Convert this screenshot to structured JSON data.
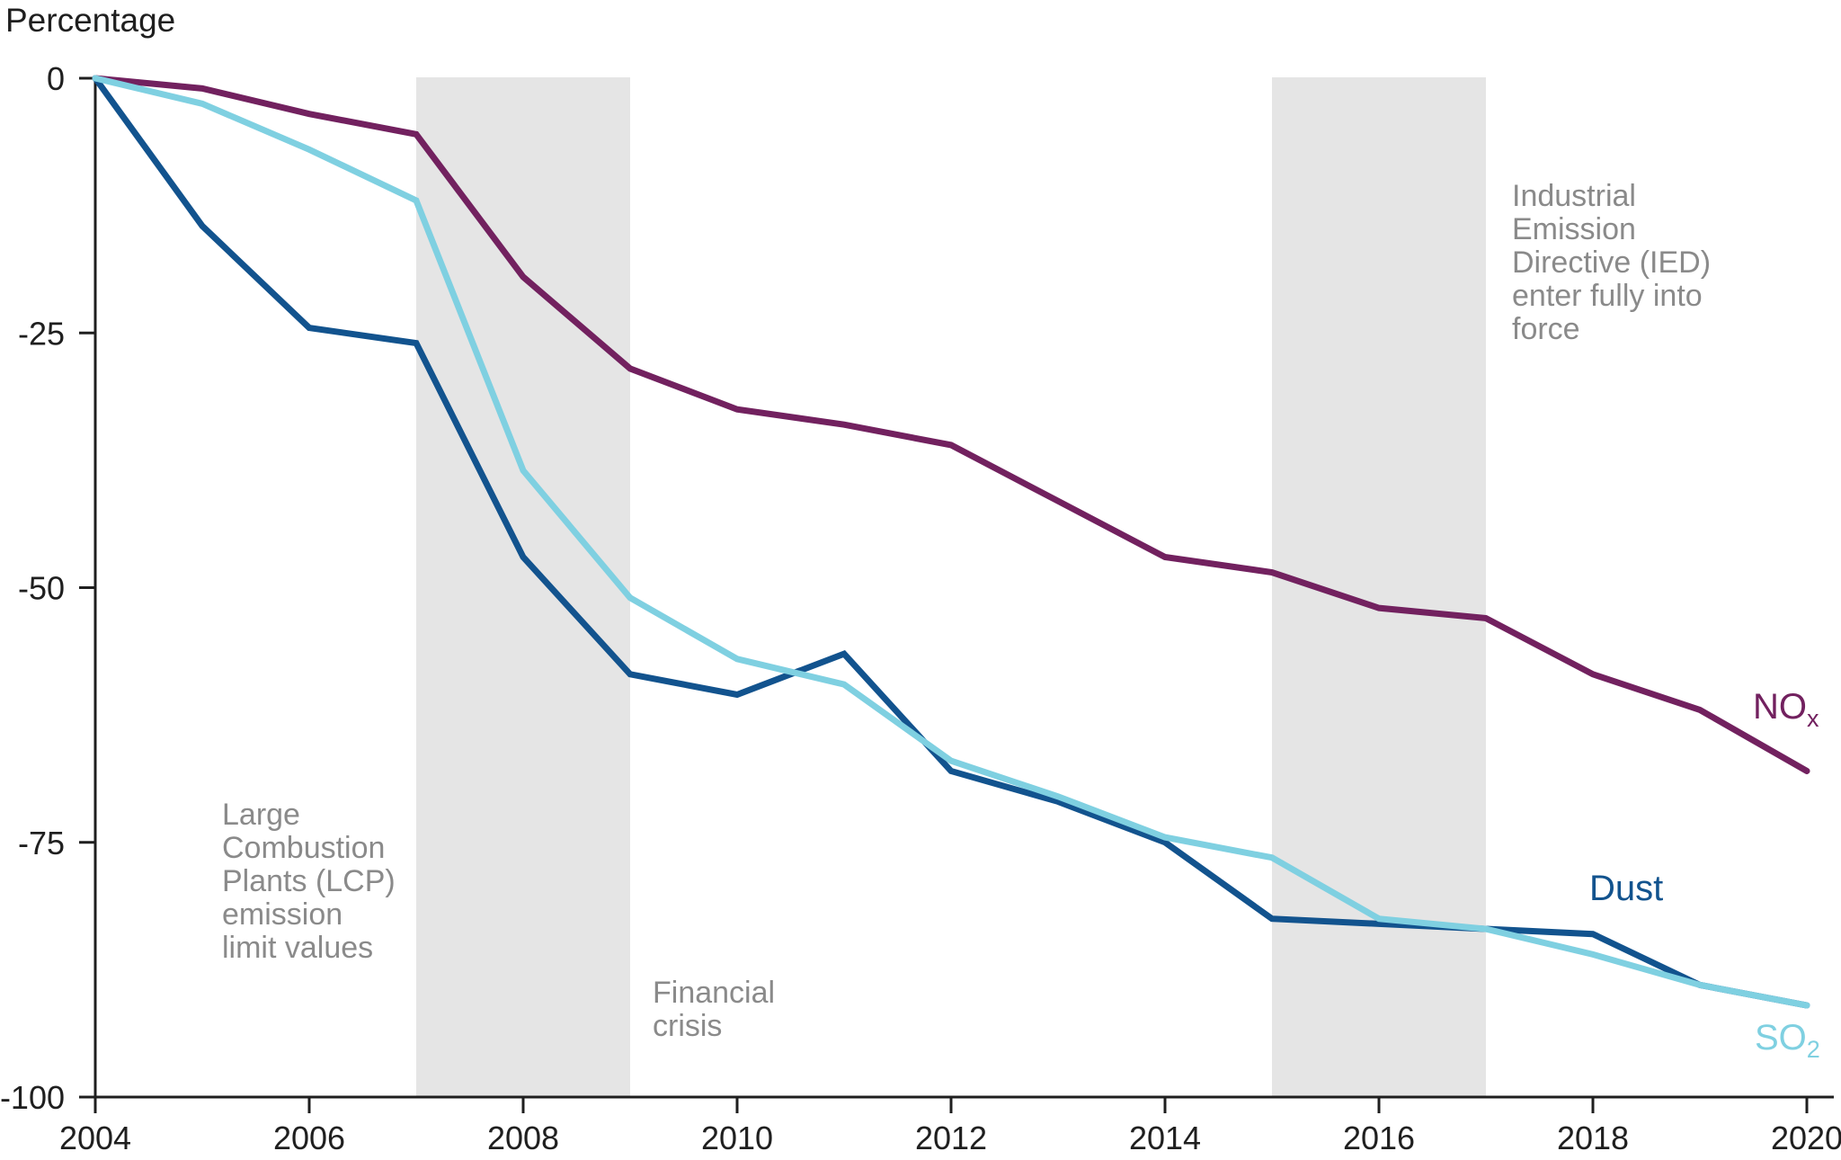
{
  "chart_data": {
    "type": "line",
    "title": "Percentage",
    "xlabel": "",
    "ylabel": "Percentage",
    "xlim": [
      2004,
      2020
    ],
    "ylim": [
      -100,
      0
    ],
    "grid": false,
    "legend_position": "end-of-line labels",
    "x": [
      2004,
      2005,
      2006,
      2007,
      2008,
      2009,
      2010,
      2011,
      2012,
      2013,
      2014,
      2015,
      2016,
      2017,
      2018,
      2019,
      2020
    ],
    "x_ticks": [
      2004,
      2006,
      2008,
      2010,
      2012,
      2014,
      2016,
      2018,
      2020
    ],
    "y_ticks": [
      0,
      -25,
      -50,
      -75,
      -100
    ],
    "series": [
      {
        "name": "NOx",
        "label_main": "NO",
        "label_sub": "x",
        "color": "#72215f",
        "values": [
          0,
          -1,
          -3.5,
          -5.5,
          -19.5,
          -28.5,
          -32.5,
          -34,
          -36,
          -41.5,
          -47,
          -48.5,
          -52,
          -53,
          -58.5,
          -62,
          -68
        ]
      },
      {
        "name": "Dust",
        "label_main": "Dust",
        "label_sub": "",
        "color": "#12538e",
        "values": [
          0,
          -14.5,
          -24.5,
          -26,
          -47,
          -58.5,
          -60.5,
          -56.5,
          -68,
          -71,
          -75,
          -82.5,
          -83,
          -83.5,
          -84,
          -89,
          -91
        ]
      },
      {
        "name": "SO2",
        "label_main": "SO",
        "label_sub": "2",
        "color": "#7fd0e1",
        "values": [
          0,
          -2.5,
          -7,
          -12,
          -38.5,
          -51,
          -57,
          -59.5,
          -67,
          -70.5,
          -74.5,
          -76.5,
          -82.5,
          -83.5,
          -86,
          -89,
          -91
        ]
      }
    ],
    "shaded_regions": [
      {
        "from": 2007,
        "to": 2009,
        "color": "#e5e5e5"
      },
      {
        "from": 2015,
        "to": 2017,
        "color": "#e5e5e5"
      }
    ]
  },
  "annotations": {
    "lcp": "Large\nCombustion\nPlants (LCP)\nemission\nlimit values",
    "financial_crisis": "Financial\ncrisis",
    "ied": "Industrial\nEmission\nDirective (IED)\nenter fully into\nforce",
    "text_color": "#8a8a8a"
  }
}
